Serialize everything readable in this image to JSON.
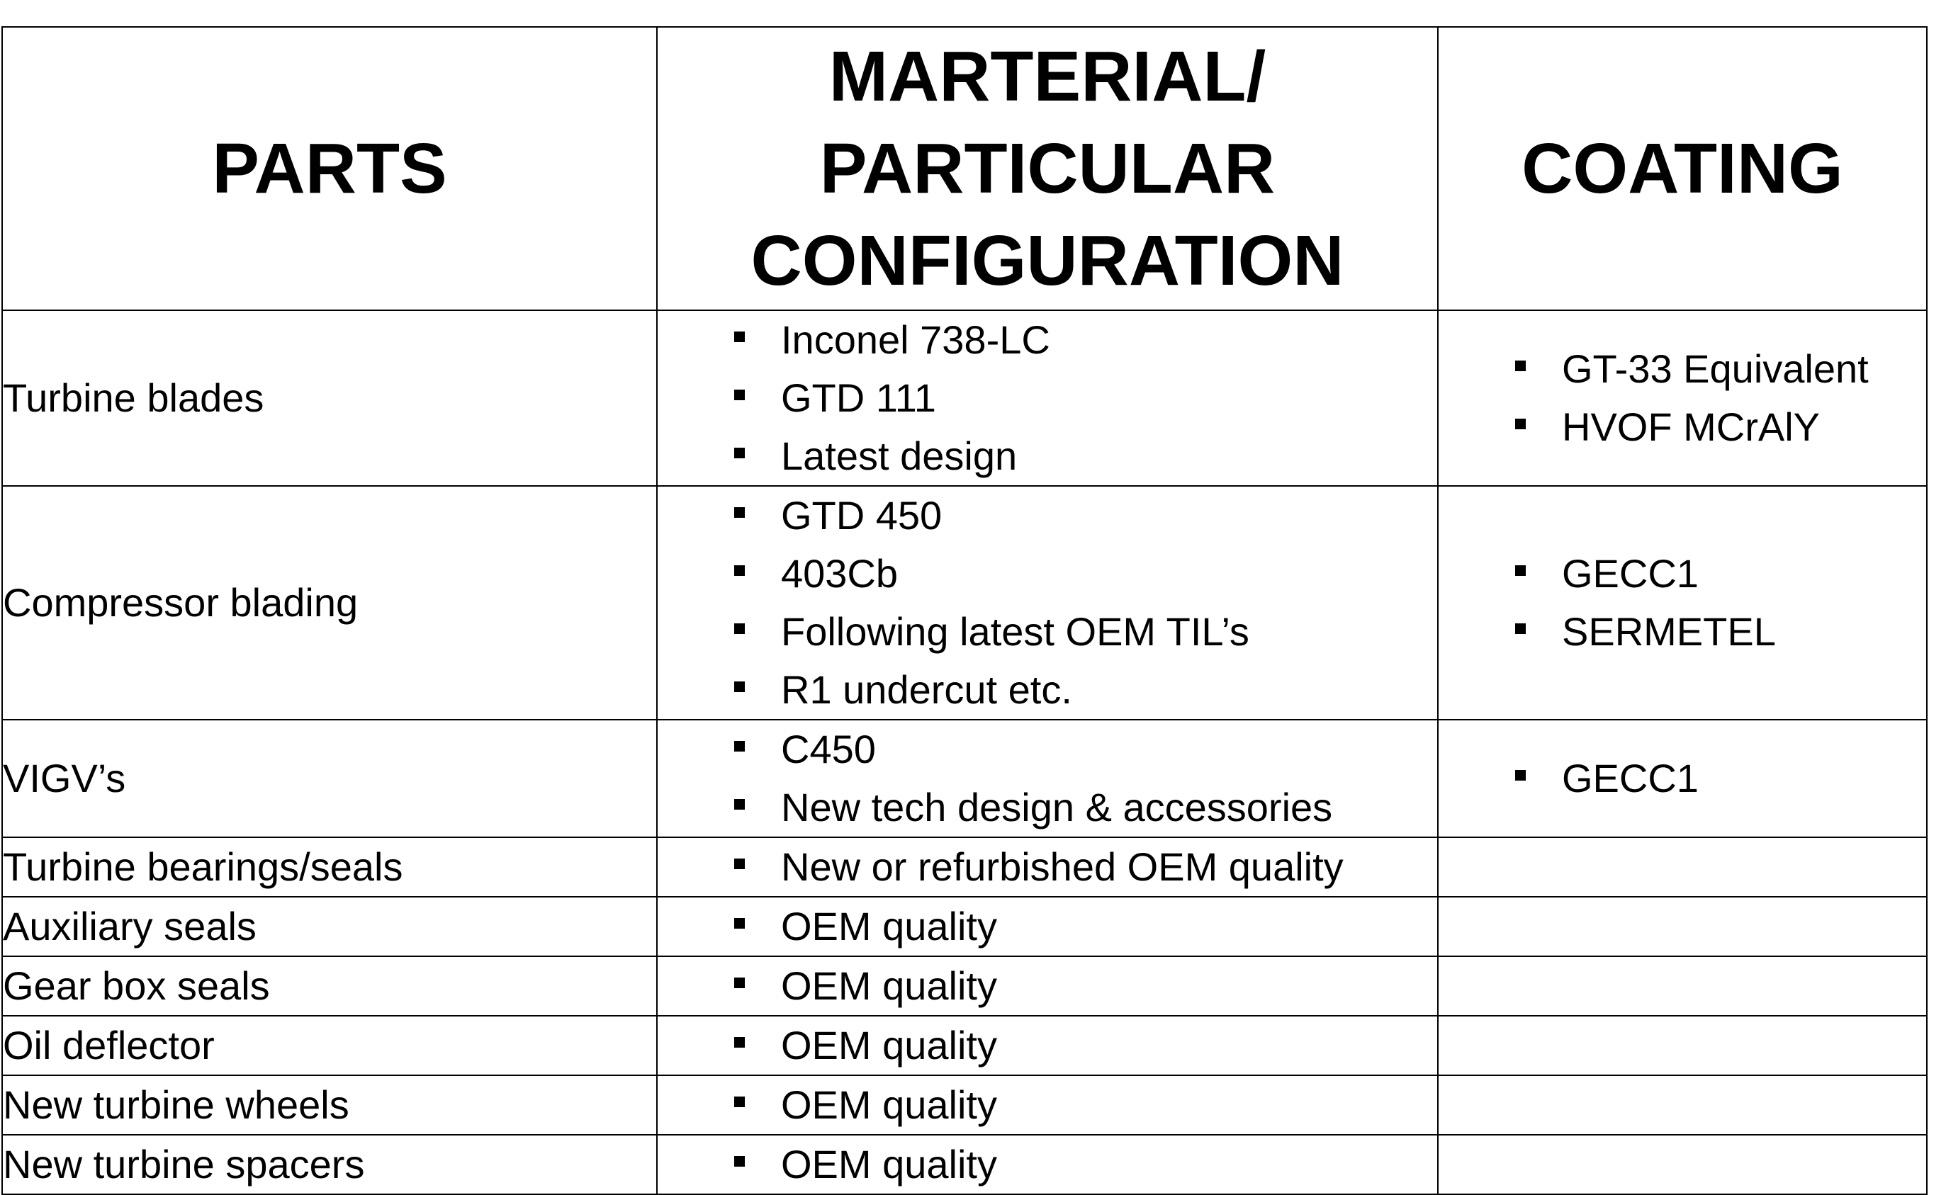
{
  "table": {
    "headers": {
      "parts": [
        "PARTS"
      ],
      "material": [
        "MARTERIAL/",
        "PARTICULAR",
        "CONFIGURATION"
      ],
      "coating": [
        "COATING"
      ]
    },
    "rows": [
      {
        "part": "Turbine blades",
        "materials": [
          "Inconel 738-LC",
          "GTD 111",
          "Latest design"
        ],
        "coatings": [
          "GT-33 Equivalent",
          "HVOF MCrAlY"
        ]
      },
      {
        "part": "Compressor blading",
        "materials": [
          "GTD 450",
          "403Cb",
          "Following latest OEM TIL’s",
          "R1 undercut etc."
        ],
        "coatings": [
          "GECC1",
          "SERMETEL"
        ]
      },
      {
        "part": "VIGV’s",
        "materials": [
          "C450",
          "New tech design & accessories"
        ],
        "coatings": [
          "GECC1"
        ]
      },
      {
        "part": "Turbine bearings/seals",
        "materials": [
          "New or refurbished OEM quality"
        ],
        "coatings": []
      },
      {
        "part": "Auxiliary seals",
        "materials": [
          "OEM quality"
        ],
        "coatings": []
      },
      {
        "part": "Gear box seals",
        "materials": [
          "OEM quality"
        ],
        "coatings": []
      },
      {
        "part": "Oil deflector",
        "materials": [
          "OEM quality"
        ],
        "coatings": []
      },
      {
        "part": "New turbine wheels",
        "materials": [
          "OEM quality"
        ],
        "coatings": []
      },
      {
        "part": "New turbine spacers",
        "materials": [
          "OEM quality"
        ],
        "coatings": []
      }
    ]
  }
}
